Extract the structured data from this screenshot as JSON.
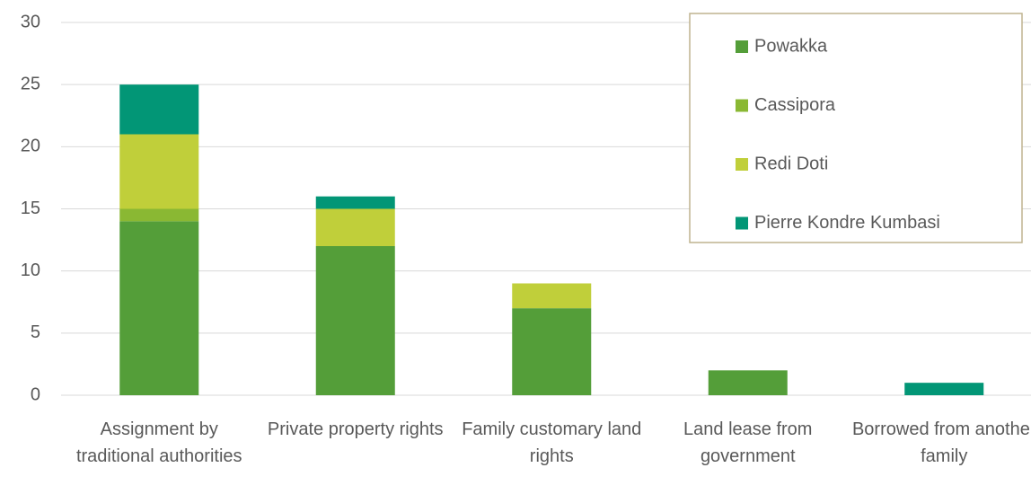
{
  "chart_data": {
    "type": "stacked_bar",
    "categories": [
      "Assignment by traditional authorities",
      "Private property rights",
      "Family customary land rights",
      "Land lease from government",
      "Borrowed from another family"
    ],
    "series": [
      {
        "name": "Powakka",
        "color": "#549e39",
        "values": [
          14,
          12,
          7,
          2,
          0
        ]
      },
      {
        "name": "Cassipora",
        "color": "#8ab833",
        "values": [
          1,
          0,
          0,
          0,
          0
        ]
      },
      {
        "name": "Redi Doti",
        "color": "#c0cf3a",
        "values": [
          6,
          3,
          2,
          0,
          0
        ]
      },
      {
        "name": "Pierre Kondre Kumbasi",
        "color": "#029676",
        "values": [
          4,
          1,
          0,
          0,
          1
        ]
      }
    ],
    "ylim": [
      0,
      30
    ],
    "yticks": [
      0,
      5,
      10,
      15,
      20,
      25,
      30
    ],
    "grid": true,
    "legend": "upper right"
  }
}
